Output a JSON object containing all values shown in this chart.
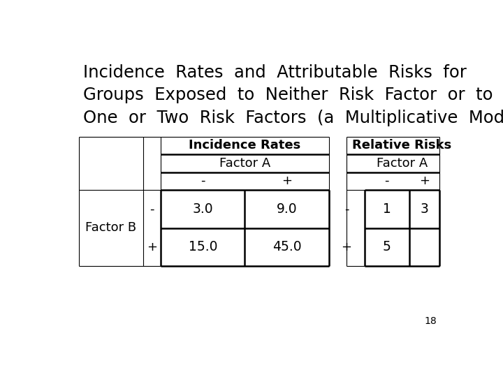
{
  "title_line1": "Incidence  Rates  and  Attributable  Risks  for",
  "title_line2": "Groups  Exposed  to  Neither  Risk  Factor  or  to",
  "title_line3": "One  or  Two  Risk  Factors  (a  Multiplicative  Model)",
  "title_fontsize": 17.5,
  "title_font": "DejaVu Sans",
  "page_number": "18",
  "background_color": "#ffffff",
  "incidence_header": "Incidence Rates",
  "relative_header": "Relative Risks",
  "factor_a_label": "Factor A",
  "factor_b_label": "Factor B",
  "minus_label": "-",
  "plus_label": "+",
  "cell_values": {
    "ir_neg_neg": "3.0",
    "ir_neg_pos": "9.0",
    "ir_pos_neg": "15.0",
    "ir_pos_pos": "45.0",
    "rr_neg_neg": "1",
    "rr_neg_pos": "3",
    "rr_pos_neg": "5",
    "rr_pos_pos": ""
  },
  "font_size_cells": 13.5,
  "font_size_headers": 13,
  "font_size_labels": 13
}
